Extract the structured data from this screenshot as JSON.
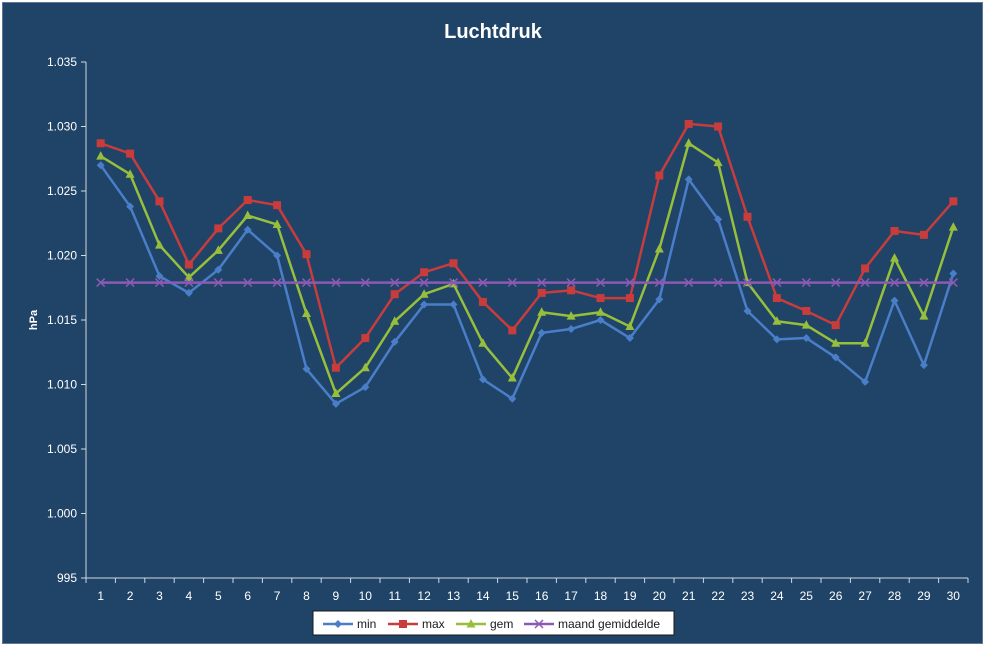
{
  "chart_data": {
    "type": "line",
    "title": "Luchtdruk",
    "xlabel": "",
    "ylabel": "hPa",
    "ylim": [
      995,
      1035
    ],
    "yticks": [
      "995",
      "1.000",
      "1.005",
      "1.010",
      "1.015",
      "1.020",
      "1.025",
      "1.030",
      "1.035"
    ],
    "ytick_values": [
      995,
      1000,
      1005,
      1010,
      1015,
      1020,
      1025,
      1030,
      1035
    ],
    "categories": [
      "1",
      "2",
      "3",
      "4",
      "5",
      "6",
      "7",
      "8",
      "9",
      "10",
      "11",
      "12",
      "13",
      "14",
      "15",
      "16",
      "17",
      "18",
      "19",
      "20",
      "21",
      "22",
      "23",
      "24",
      "25",
      "26",
      "27",
      "28",
      "29",
      "30"
    ],
    "grid": false,
    "legend_position": "bottom",
    "series": [
      {
        "name": "min",
        "color": "#4a7ec8",
        "marker": "diamond",
        "values": [
          1027.0,
          1023.8,
          1018.4,
          1017.1,
          1018.9,
          1022.0,
          1020.0,
          1011.2,
          1008.5,
          1009.8,
          1013.3,
          1016.2,
          1016.2,
          1010.4,
          1008.9,
          1014.0,
          1014.3,
          1015.0,
          1013.6,
          1016.6,
          1025.9,
          1022.8,
          1015.7,
          1013.5,
          1013.6,
          1012.1,
          1010.2,
          1016.5,
          1011.5,
          1018.6
        ]
      },
      {
        "name": "max",
        "color": "#c83c3c",
        "marker": "square",
        "values": [
          1028.7,
          1027.9,
          1024.2,
          1019.3,
          1022.1,
          1024.3,
          1023.9,
          1020.1,
          1011.3,
          1013.6,
          1017.0,
          1018.7,
          1019.4,
          1016.4,
          1014.2,
          1017.1,
          1017.3,
          1016.7,
          1016.7,
          1026.2,
          1030.2,
          1030.0,
          1023.0,
          1016.7,
          1015.7,
          1014.6,
          1019.0,
          1021.9,
          1021.6,
          1024.2
        ]
      },
      {
        "name": "gem",
        "color": "#98bf3c",
        "marker": "triangle",
        "values": [
          1027.7,
          1026.3,
          1020.8,
          1018.3,
          1020.4,
          1023.1,
          1022.4,
          1015.5,
          1009.3,
          1011.3,
          1014.9,
          1017.0,
          1017.8,
          1013.2,
          1010.5,
          1015.6,
          1015.3,
          1015.6,
          1014.5,
          1020.5,
          1028.7,
          1027.2,
          1017.9,
          1014.9,
          1014.6,
          1013.2,
          1013.2,
          1019.8,
          1015.3,
          1022.2
        ]
      },
      {
        "name": "maand gemiddelde",
        "color": "#8c5ab4",
        "marker": "x",
        "values": [
          1017.9,
          1017.9,
          1017.9,
          1017.9,
          1017.9,
          1017.9,
          1017.9,
          1017.9,
          1017.9,
          1017.9,
          1017.9,
          1017.9,
          1017.9,
          1017.9,
          1017.9,
          1017.9,
          1017.9,
          1017.9,
          1017.9,
          1017.9,
          1017.9,
          1017.9,
          1017.9,
          1017.9,
          1017.9,
          1017.9,
          1017.9,
          1017.9,
          1017.9,
          1017.9
        ]
      }
    ]
  }
}
